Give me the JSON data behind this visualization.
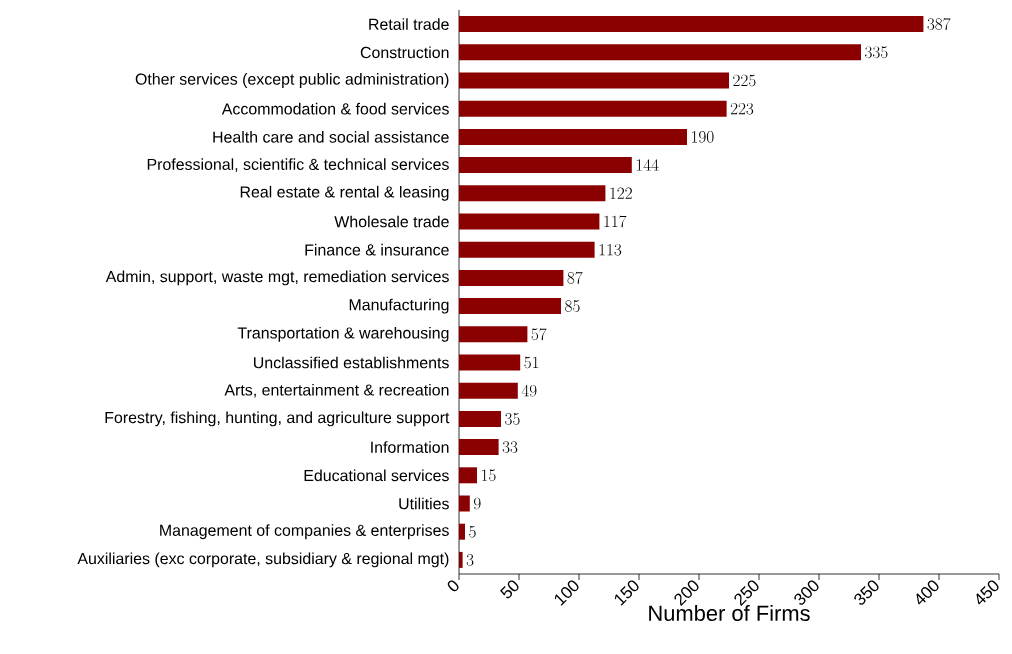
{
  "chart_data": {
    "type": "bar",
    "orientation": "horizontal",
    "xlabel": "Number of Firms",
    "categories": [
      "Retail trade",
      "Construction",
      "Other services (except public administration)",
      "Accommodation & food services",
      "Health care and social assistance",
      "Professional, scientific & technical services",
      "Real estate & rental & leasing",
      "Wholesale trade",
      "Finance & insurance",
      "Admin, support, waste mgt, remediation services",
      "Manufacturing",
      "Transportation & warehousing",
      "Unclassified establishments",
      "Arts, entertainment & recreation",
      "Forestry, fishing, hunting, and agriculture support",
      "Information",
      "Educational services",
      "Utilities",
      "Management of companies & enterprises",
      "Auxiliaries (exc corporate, subsidiary & regional mgt)"
    ],
    "values": [
      387,
      335,
      225,
      223,
      190,
      144,
      122,
      117,
      113,
      87,
      85,
      57,
      51,
      49,
      35,
      33,
      15,
      9,
      5,
      3
    ],
    "color": "#8b0000",
    "xlim": [
      0,
      450
    ],
    "xticks": [
      0,
      50,
      100,
      150,
      200,
      250,
      300,
      350,
      400,
      450
    ],
    "data_labels": true
  }
}
